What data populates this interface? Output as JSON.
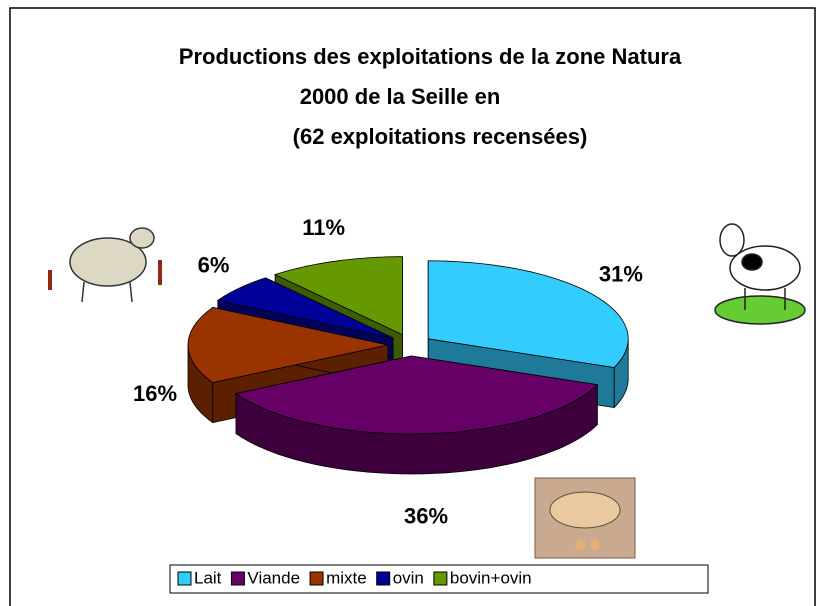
{
  "chart_data": {
    "type": "pie3d",
    "title": [
      "Productions des exploitations de la zone Natura",
      "2000 de la Seille en",
      "(62 exploitations recensées)"
    ],
    "categories": [
      "Lait",
      "Viande",
      "mixte",
      "ovin",
      "bovin+ovin"
    ],
    "values": [
      31,
      36,
      16,
      6,
      11
    ],
    "value_labels": [
      "31%",
      "36%",
      "16%",
      "6%",
      "11%"
    ],
    "colors": [
      "#33ccff",
      "#660066",
      "#993300",
      "#000099",
      "#669900"
    ],
    "legend": "bottom"
  }
}
